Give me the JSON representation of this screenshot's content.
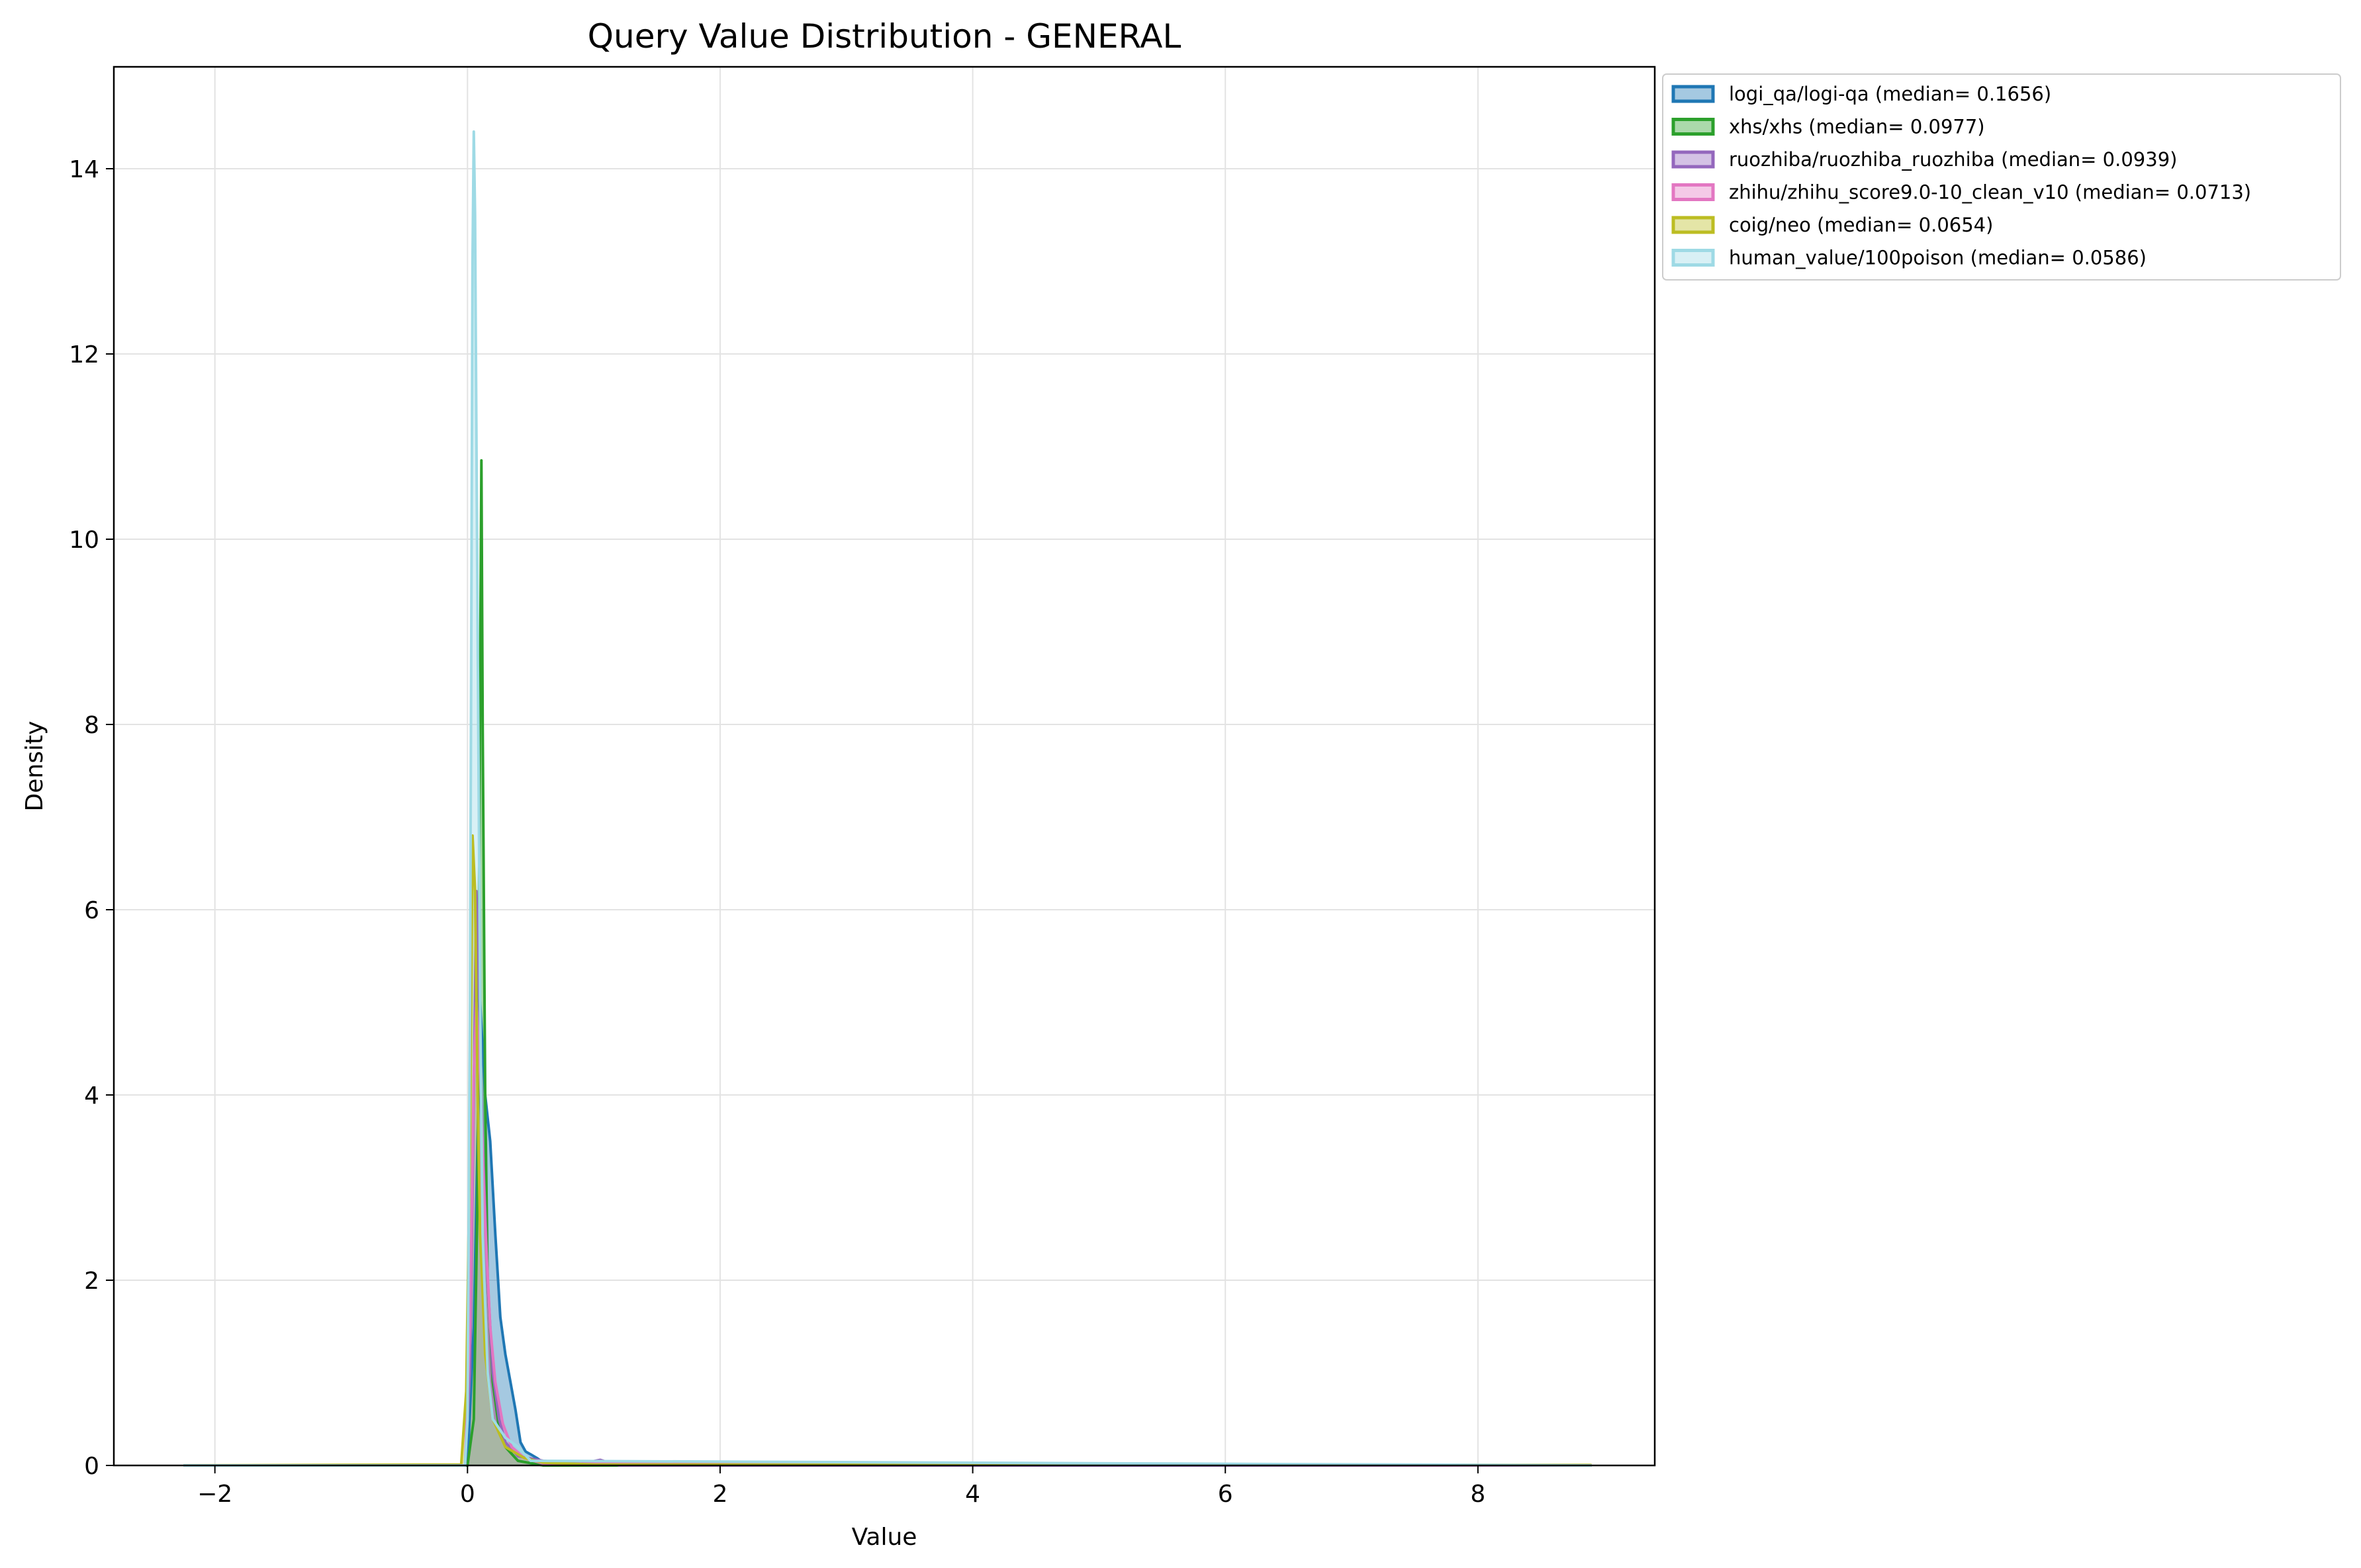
{
  "chart_data": {
    "type": "area",
    "title": "Query Value Distribution - GENERAL",
    "xlabel": "Value",
    "ylabel": "Density",
    "xlim": [
      -2.8,
      9.4
    ],
    "ylim": [
      0,
      15.1
    ],
    "xticks": [
      -2,
      0,
      2,
      4,
      6,
      8
    ],
    "xtick_labels": [
      "−2",
      "0",
      "2",
      "4",
      "6",
      "8"
    ],
    "yticks": [
      0,
      2,
      4,
      6,
      8,
      10,
      12,
      14
    ],
    "ytick_labels": [
      "0",
      "2",
      "4",
      "6",
      "8",
      "10",
      "12",
      "14"
    ],
    "grid": true,
    "legend_position": "outside-top-right",
    "series": [
      {
        "name": "logi_qa/logi-qa (median= 0.1656)",
        "color": "#1f77b4",
        "x": [
          -2.25,
          0.0,
          0.05,
          0.08,
          0.1,
          0.14,
          0.18,
          0.22,
          0.26,
          0.3,
          0.34,
          0.38,
          0.42,
          0.46,
          0.5,
          0.55,
          0.6,
          0.7,
          1.0,
          8.9
        ],
        "y": [
          0,
          0,
          1.5,
          3.5,
          5.0,
          4.0,
          3.5,
          2.5,
          1.6,
          1.2,
          0.9,
          0.6,
          0.25,
          0.15,
          0.12,
          0.08,
          0.03,
          0.01,
          0,
          0
        ]
      },
      {
        "name": "xhs/xhs (median= 0.0977)",
        "color": "#2ca02c",
        "x": [
          -2.25,
          0.0,
          0.05,
          0.08,
          0.1,
          0.11,
          0.12,
          0.14,
          0.16,
          0.2,
          0.25,
          0.3,
          0.4,
          0.6,
          8.9
        ],
        "y": [
          0,
          0,
          0.5,
          3.0,
          8.5,
          10.85,
          8.0,
          4.0,
          2.0,
          0.9,
          0.4,
          0.2,
          0.05,
          0,
          0
        ]
      },
      {
        "name": "ruozhiba/ruozhiba_ruozhiba (median= 0.0939)",
        "color": "#9467bd",
        "x": [
          -2.25,
          -0.02,
          0.02,
          0.05,
          0.07,
          0.09,
          0.12,
          0.16,
          0.2,
          0.25,
          0.3,
          0.4,
          0.6,
          0.9,
          1.05,
          1.2,
          8.9
        ],
        "y": [
          0,
          0,
          1.0,
          4.0,
          6.2,
          5.2,
          3.5,
          2.0,
          1.0,
          0.5,
          0.25,
          0.1,
          0.05,
          0.02,
          0.06,
          0,
          0
        ]
      },
      {
        "name": "zhihu/zhihu_score9.0-10_clean_v10 (median= 0.0713)",
        "color": "#e377c2",
        "x": [
          -2.25,
          -0.02,
          0.02,
          0.05,
          0.07,
          0.1,
          0.14,
          0.18,
          0.22,
          0.28,
          0.35,
          0.45,
          0.6,
          8.9
        ],
        "y": [
          0,
          0,
          1.5,
          4.2,
          5.0,
          4.2,
          2.6,
          1.5,
          0.9,
          0.45,
          0.2,
          0.08,
          0.02,
          0
        ]
      },
      {
        "name": "coig/neo (median= 0.0654)",
        "color": "#bcbd22",
        "x": [
          -2.25,
          -0.05,
          -0.01,
          0.02,
          0.04,
          0.06,
          0.08,
          0.1,
          0.14,
          0.2,
          0.3,
          0.45,
          0.6,
          1.0,
          8.9
        ],
        "y": [
          0.001,
          0.01,
          0.8,
          3.5,
          6.8,
          6.2,
          4.0,
          2.5,
          1.2,
          0.5,
          0.2,
          0.08,
          0.03,
          0.01,
          0.005
        ]
      },
      {
        "name": "human_value/100poison (median= 0.0586)",
        "color": "#9edae5",
        "x": [
          -2.25,
          -0.02,
          0.0,
          0.02,
          0.04,
          0.05,
          0.06,
          0.08,
          0.1,
          0.12,
          0.16,
          0.2,
          0.3,
          0.4,
          0.5,
          8.9
        ],
        "y": [
          0,
          0,
          0.5,
          5.0,
          13.0,
          14.4,
          13.5,
          9.0,
          5.0,
          2.5,
          1.0,
          0.5,
          0.3,
          0.2,
          0.05,
          0
        ]
      }
    ]
  }
}
